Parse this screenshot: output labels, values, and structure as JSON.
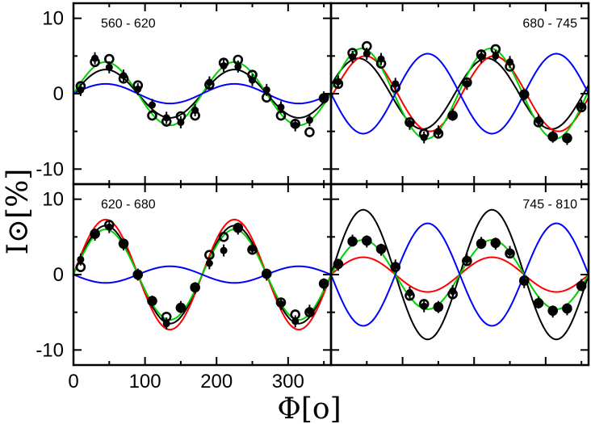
{
  "chart_data": {
    "type": "line",
    "xlabel": "Φ[o]",
    "ylabel": "I⊙[%]",
    "xlim": [
      0,
      360
    ],
    "ylim": [
      -12,
      12
    ],
    "x_ticks": [
      "0",
      "100",
      "200",
      "300"
    ],
    "y_ticks": [
      "10",
      "0",
      "-10"
    ],
    "grid": false,
    "panels": [
      {
        "label": "560 - 620",
        "models": [
          {
            "color": "#000000",
            "amp": 3.2,
            "phase": 45
          },
          {
            "color": "#00d000",
            "amp": 4.2,
            "phase": 45
          },
          {
            "color": "#0000ff",
            "amp": 1.3,
            "phase": 45
          }
        ],
        "filled_points": [
          {
            "x": 10,
            "y": 0.5,
            "err": 0.8
          },
          {
            "x": 30,
            "y": 4.7,
            "err": 0.8
          },
          {
            "x": 50,
            "y": 3.5,
            "err": 0.8
          },
          {
            "x": 70,
            "y": 2.4,
            "err": 0.8
          },
          {
            "x": 90,
            "y": 0.6,
            "err": 0.8
          },
          {
            "x": 110,
            "y": -1.5,
            "err": 0.8
          },
          {
            "x": 130,
            "y": -3.2,
            "err": 0.8
          },
          {
            "x": 150,
            "y": -3.8,
            "err": 0.8
          },
          {
            "x": 170,
            "y": -2.2,
            "err": 0.8
          },
          {
            "x": 190,
            "y": 1.5,
            "err": 0.8
          },
          {
            "x": 210,
            "y": 3.7,
            "err": 0.8
          },
          {
            "x": 230,
            "y": 3.6,
            "err": 0.8
          },
          {
            "x": 250,
            "y": 1.8,
            "err": 0.8
          },
          {
            "x": 270,
            "y": 0.5,
            "err": 0.8
          },
          {
            "x": 290,
            "y": -1.8,
            "err": 0.8
          },
          {
            "x": 310,
            "y": -4.2,
            "err": 0.8
          },
          {
            "x": 330,
            "y": -3.5,
            "err": 0.8
          },
          {
            "x": 350,
            "y": -0.5,
            "err": 0.8
          }
        ],
        "open_points": [
          {
            "x": 10,
            "y": 1.0
          },
          {
            "x": 30,
            "y": 4.2
          },
          {
            "x": 50,
            "y": 4.6
          },
          {
            "x": 70,
            "y": 2.0
          },
          {
            "x": 90,
            "y": 1.1
          },
          {
            "x": 110,
            "y": -2.9
          },
          {
            "x": 130,
            "y": -3.7
          },
          {
            "x": 150,
            "y": -3.0
          },
          {
            "x": 170,
            "y": -2.9
          },
          {
            "x": 190,
            "y": 1.2
          },
          {
            "x": 210,
            "y": 4.1
          },
          {
            "x": 230,
            "y": 4.5
          },
          {
            "x": 250,
            "y": 2.5
          },
          {
            "x": 270,
            "y": -0.5
          },
          {
            "x": 290,
            "y": -2.9
          },
          {
            "x": 310,
            "y": -4.0
          },
          {
            "x": 330,
            "y": -5.1
          },
          {
            "x": 350,
            "y": -0.6
          }
        ]
      },
      {
        "label": "680 - 745",
        "models": [
          {
            "color": "#000000",
            "amp": 4.7,
            "phase": 38
          },
          {
            "color": "#ff0000",
            "amp": 5.0,
            "phase": 48
          },
          {
            "color": "#00d000",
            "amp": 6.0,
            "phase": 43
          },
          {
            "color": "#0000ff",
            "amp": -5.3,
            "phase": 45
          }
        ],
        "filled_points": [
          {
            "x": 10,
            "y": 1.6,
            "err": 0.8
          },
          {
            "x": 30,
            "y": 4.9,
            "err": 0.8
          },
          {
            "x": 50,
            "y": 5.3,
            "err": 0.8
          },
          {
            "x": 70,
            "y": 4.6,
            "err": 0.8
          },
          {
            "x": 90,
            "y": 1.3,
            "err": 0.8
          },
          {
            "x": 110,
            "y": -4.0,
            "err": 0.8
          },
          {
            "x": 130,
            "y": -5.8,
            "err": 0.8
          },
          {
            "x": 150,
            "y": -5.0,
            "err": 0.8
          },
          {
            "x": 170,
            "y": -2.8,
            "err": 0.8
          },
          {
            "x": 190,
            "y": 1.3,
            "err": 0.8
          },
          {
            "x": 210,
            "y": 4.9,
            "err": 0.8
          },
          {
            "x": 230,
            "y": 5.0,
            "err": 0.8
          },
          {
            "x": 250,
            "y": 4.2,
            "err": 0.8
          },
          {
            "x": 270,
            "y": -0.1,
            "err": 0.8
          },
          {
            "x": 290,
            "y": -3.5,
            "err": 0.8
          },
          {
            "x": 310,
            "y": -5.7,
            "err": 0.8
          },
          {
            "x": 330,
            "y": -6.0,
            "err": 0.8
          },
          {
            "x": 350,
            "y": -1.6,
            "err": 0.8
          }
        ],
        "open_points": [
          {
            "x": 10,
            "y": 1.3
          },
          {
            "x": 30,
            "y": 5.4
          },
          {
            "x": 50,
            "y": 6.3
          },
          {
            "x": 70,
            "y": 4.0
          },
          {
            "x": 90,
            "y": 0.8
          },
          {
            "x": 110,
            "y": -3.8
          },
          {
            "x": 130,
            "y": -5.3
          },
          {
            "x": 150,
            "y": -5.3
          },
          {
            "x": 170,
            "y": -2.9
          },
          {
            "x": 190,
            "y": 1.5
          },
          {
            "x": 210,
            "y": 5.2
          },
          {
            "x": 230,
            "y": 5.9
          },
          {
            "x": 250,
            "y": 3.6
          },
          {
            "x": 270,
            "y": -0.1
          },
          {
            "x": 290,
            "y": -3.8
          },
          {
            "x": 310,
            "y": -5.7
          },
          {
            "x": 330,
            "y": -5.9
          },
          {
            "x": 350,
            "y": -1.8
          }
        ]
      },
      {
        "label": "620 - 680",
        "models": [
          {
            "color": "#000000",
            "amp": 6.5,
            "phase": 45
          },
          {
            "color": "#ff0000",
            "amp": 7.3,
            "phase": 45
          },
          {
            "color": "#00d000",
            "amp": 6.0,
            "phase": 45
          },
          {
            "color": "#0000ff",
            "amp": -1.1,
            "phase": 45
          }
        ],
        "filled_points": [
          {
            "x": 10,
            "y": 2.0,
            "err": 0.8
          },
          {
            "x": 30,
            "y": 5.3,
            "err": 0.8
          },
          {
            "x": 50,
            "y": 6.3,
            "err": 0.8
          },
          {
            "x": 70,
            "y": 4.0,
            "err": 0.8
          },
          {
            "x": 90,
            "y": 0.0,
            "err": 0.8
          },
          {
            "x": 110,
            "y": -3.6,
            "err": 0.8
          },
          {
            "x": 130,
            "y": -6.5,
            "err": 0.8
          },
          {
            "x": 150,
            "y": -4.3,
            "err": 0.8
          },
          {
            "x": 170,
            "y": -1.8,
            "err": 0.8
          },
          {
            "x": 190,
            "y": 1.5,
            "err": 0.8
          },
          {
            "x": 210,
            "y": 3.2,
            "err": 0.8
          },
          {
            "x": 230,
            "y": 6.1,
            "err": 0.8
          },
          {
            "x": 250,
            "y": 3.5,
            "err": 0.8
          },
          {
            "x": 270,
            "y": 0.0,
            "err": 0.8
          },
          {
            "x": 290,
            "y": -3.9,
            "err": 0.8
          },
          {
            "x": 310,
            "y": -6.2,
            "err": 0.8
          },
          {
            "x": 330,
            "y": -4.8,
            "err": 0.8
          },
          {
            "x": 350,
            "y": -1.3,
            "err": 0.8
          }
        ],
        "open_points": [
          {
            "x": 10,
            "y": 1.0
          },
          {
            "x": 30,
            "y": 5.4
          },
          {
            "x": 50,
            "y": 6.6
          },
          {
            "x": 70,
            "y": 4.1
          },
          {
            "x": 90,
            "y": 0.0
          },
          {
            "x": 110,
            "y": -3.5
          },
          {
            "x": 130,
            "y": -5.6
          },
          {
            "x": 150,
            "y": -4.4
          },
          {
            "x": 170,
            "y": -1.7
          },
          {
            "x": 190,
            "y": 2.6
          },
          {
            "x": 210,
            "y": 5.0
          },
          {
            "x": 230,
            "y": 6.2
          },
          {
            "x": 250,
            "y": 3.3
          },
          {
            "x": 270,
            "y": 0.1
          },
          {
            "x": 290,
            "y": -3.7
          },
          {
            "x": 310,
            "y": -5.3
          },
          {
            "x": 330,
            "y": -5.0
          },
          {
            "x": 350,
            "y": -1.2
          }
        ]
      },
      {
        "label": "745 - 810",
        "models": [
          {
            "color": "#000000",
            "amp": 8.6,
            "phase": 45
          },
          {
            "color": "#ff0000",
            "amp": 2.3,
            "phase": 45
          },
          {
            "color": "#00d000",
            "amp": 4.6,
            "phase": 45
          },
          {
            "color": "#0000ff",
            "amp": -6.8,
            "phase": 45
          }
        ],
        "filled_points": [
          {
            "x": 10,
            "y": 1.3,
            "err": 0.8
          },
          {
            "x": 30,
            "y": 4.5,
            "err": 0.8
          },
          {
            "x": 50,
            "y": 4.4,
            "err": 0.8
          },
          {
            "x": 70,
            "y": 3.3,
            "err": 0.8
          },
          {
            "x": 90,
            "y": 1.2,
            "err": 0.8
          },
          {
            "x": 110,
            "y": -2.4,
            "err": 0.8
          },
          {
            "x": 130,
            "y": -4.2,
            "err": 0.8
          },
          {
            "x": 150,
            "y": -4.3,
            "err": 0.8
          },
          {
            "x": 170,
            "y": -2.2,
            "err": 0.8
          },
          {
            "x": 190,
            "y": 2.0,
            "err": 0.8
          },
          {
            "x": 210,
            "y": 4.2,
            "err": 0.8
          },
          {
            "x": 230,
            "y": 4.1,
            "err": 0.8
          },
          {
            "x": 250,
            "y": 3.0,
            "err": 0.8
          },
          {
            "x": 270,
            "y": -1.0,
            "err": 0.8
          },
          {
            "x": 290,
            "y": -3.7,
            "err": 0.8
          },
          {
            "x": 310,
            "y": -4.9,
            "err": 0.8
          },
          {
            "x": 330,
            "y": -4.6,
            "err": 0.8
          },
          {
            "x": 350,
            "y": -1.4,
            "err": 0.8
          }
        ],
        "open_points": [
          {
            "x": 10,
            "y": 1.4
          },
          {
            "x": 30,
            "y": 4.4
          },
          {
            "x": 50,
            "y": 4.5
          },
          {
            "x": 70,
            "y": 3.4
          },
          {
            "x": 90,
            "y": 1.0
          },
          {
            "x": 110,
            "y": -2.8
          },
          {
            "x": 130,
            "y": -3.9
          },
          {
            "x": 150,
            "y": -4.3
          },
          {
            "x": 170,
            "y": -2.6
          },
          {
            "x": 190,
            "y": 1.8
          },
          {
            "x": 210,
            "y": 4.1
          },
          {
            "x": 230,
            "y": 4.2
          },
          {
            "x": 250,
            "y": 2.8
          },
          {
            "x": 270,
            "y": -0.8
          },
          {
            "x": 290,
            "y": -3.8
          },
          {
            "x": 310,
            "y": -4.8
          },
          {
            "x": 330,
            "y": -4.5
          },
          {
            "x": 350,
            "y": -1.5
          }
        ]
      }
    ]
  }
}
